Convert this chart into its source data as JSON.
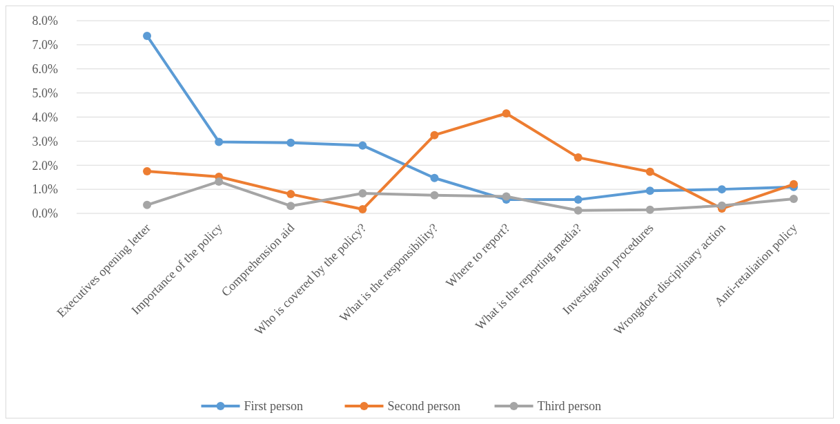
{
  "chart_data": {
    "type": "line",
    "categories": [
      "Executives opening letter",
      "Importance of the policy",
      "Comprehension aid",
      "Who is covered by the policy?",
      "What is the responsibility?",
      "Where to report?",
      "What is the reporting media?",
      "Investigation procedures",
      "Wrongdoer disciplinary action",
      "Anti-retaliation policy"
    ],
    "series": [
      {
        "name": "First person",
        "color": "#5b9bd5",
        "values": [
          7.37,
          2.97,
          2.93,
          2.82,
          1.47,
          0.57,
          0.57,
          0.94,
          1.0,
          1.1
        ]
      },
      {
        "name": "Second person",
        "color": "#ed7d31",
        "values": [
          1.75,
          1.52,
          0.8,
          0.17,
          3.25,
          4.15,
          2.32,
          1.73,
          0.2,
          1.21
        ]
      },
      {
        "name": "Third person",
        "color": "#a5a5a5",
        "values": [
          0.35,
          1.32,
          0.31,
          0.83,
          0.75,
          0.7,
          0.12,
          0.15,
          0.32,
          0.6
        ]
      }
    ],
    "ylim": [
      0,
      8
    ],
    "yticks": [
      {
        "value": 0,
        "label": "0.0%"
      },
      {
        "value": 1,
        "label": "1.0%"
      },
      {
        "value": 2,
        "label": "2.0%"
      },
      {
        "value": 3,
        "label": "3.0%"
      },
      {
        "value": 4,
        "label": "4.0%"
      },
      {
        "value": 5,
        "label": "5.0%"
      },
      {
        "value": 6,
        "label": "6.0%"
      },
      {
        "value": 7,
        "label": "7.0%"
      },
      {
        "value": 8,
        "label": "8.0%"
      }
    ],
    "grid": "y",
    "legend": "bottom",
    "marker": "circle",
    "line_style": "solid"
  }
}
